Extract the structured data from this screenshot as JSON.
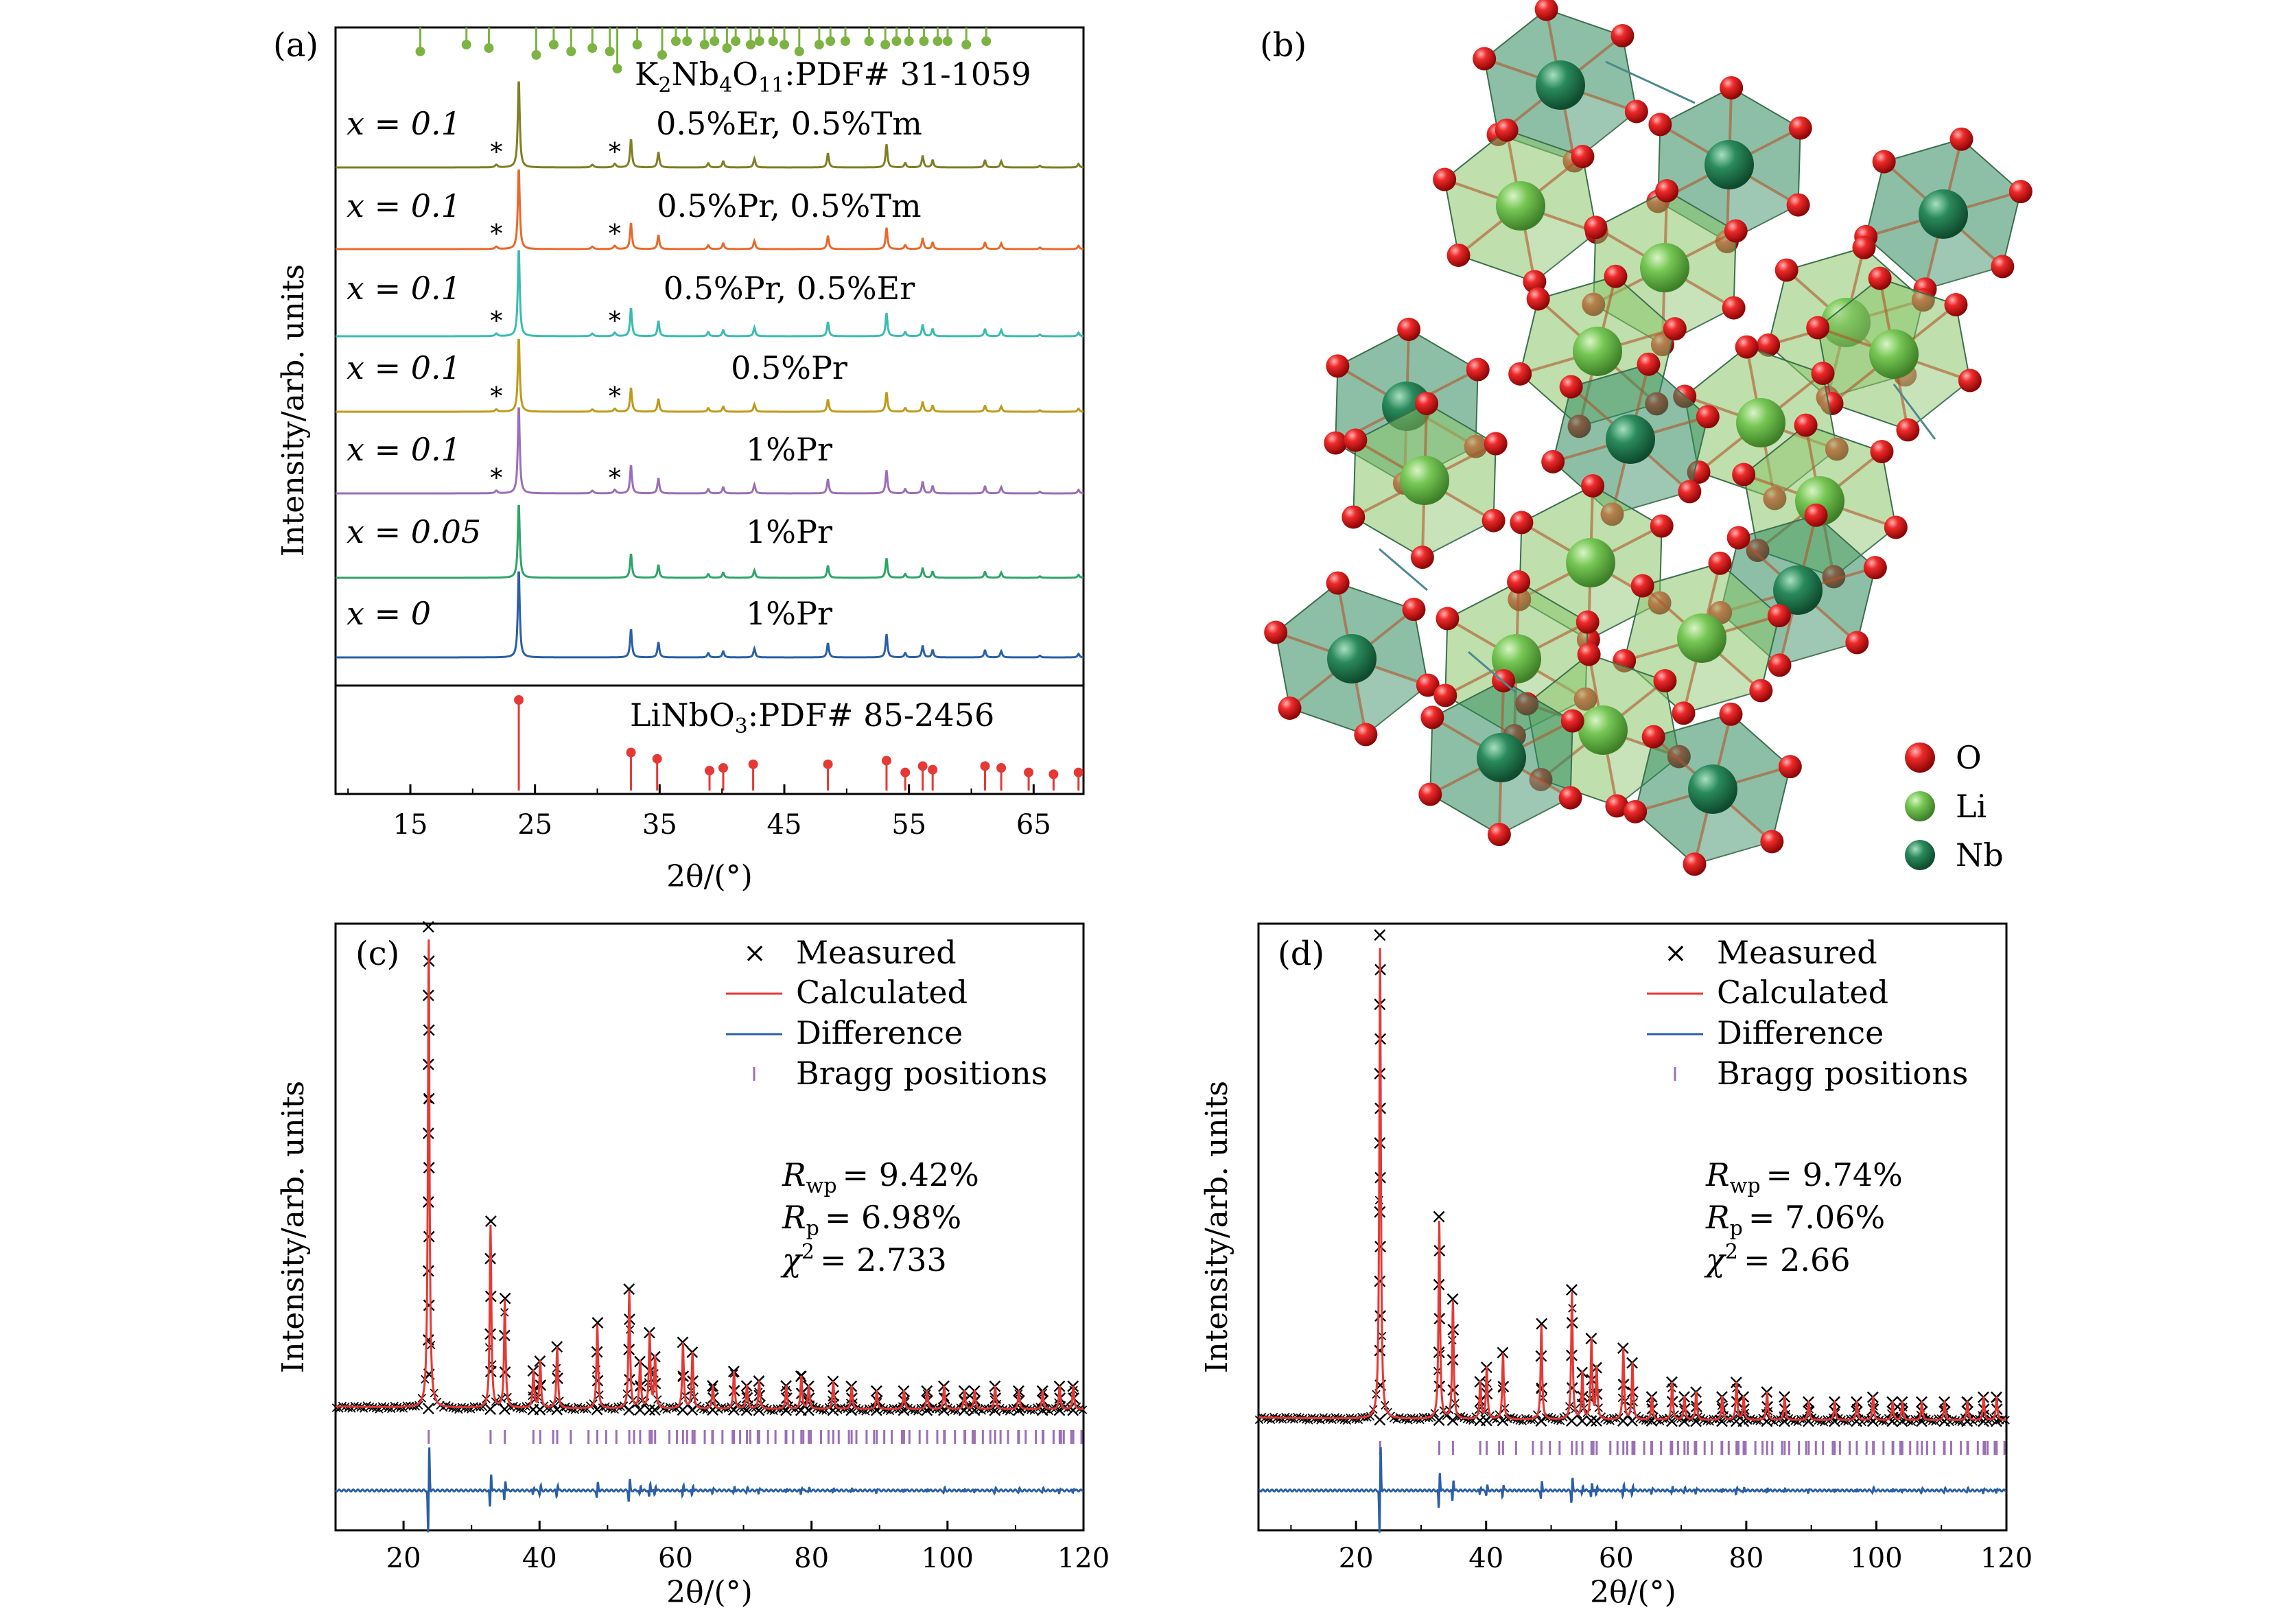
{
  "chart_data": [
    {
      "panel": "(a)",
      "type": "line",
      "xlabel": "2θ/(°)",
      "ylabel": "Intensity/arb. units",
      "xlim": [
        9,
        69
      ],
      "xticks": [
        "15",
        "25",
        "35",
        "45",
        "55",
        "65"
      ],
      "reference_top": {
        "label": "K2Nb4O11:PDF# 31-1059",
        "label_parts": [
          "K",
          "2",
          "Nb",
          "4",
          "O",
          "11",
          ":PDF# 31-1059"
        ],
        "color": "#7cb342",
        "peaks": [
          [
            15.8,
            0.5
          ],
          [
            19.5,
            0.3
          ],
          [
            21.3,
            0.4
          ],
          [
            25.1,
            0.6
          ],
          [
            26.5,
            0.3
          ],
          [
            27.9,
            0.5
          ],
          [
            29.6,
            0.4
          ],
          [
            31.0,
            0.5
          ],
          [
            31.6,
            1.0
          ],
          [
            33.2,
            0.3
          ],
          [
            35.2,
            0.6
          ],
          [
            36.3,
            0.2
          ],
          [
            37.2,
            0.2
          ],
          [
            38.6,
            0.3
          ],
          [
            39.4,
            0.2
          ],
          [
            40.4,
            0.4
          ],
          [
            41.1,
            0.2
          ],
          [
            42.3,
            0.3
          ],
          [
            43.0,
            0.2
          ],
          [
            44.1,
            0.2
          ],
          [
            45.0,
            0.3
          ],
          [
            46.2,
            0.5
          ],
          [
            47.8,
            0.3
          ],
          [
            48.7,
            0.2
          ],
          [
            49.9,
            0.2
          ],
          [
            51.8,
            0.2
          ],
          [
            53.1,
            0.3
          ],
          [
            54.0,
            0.2
          ],
          [
            55.0,
            0.2
          ],
          [
            56.2,
            0.2
          ],
          [
            57.3,
            0.2
          ],
          [
            58.1,
            0.2
          ],
          [
            59.6,
            0.3
          ],
          [
            61.2,
            0.2
          ]
        ]
      },
      "series": [
        {
          "x_label": "x = 0.1",
          "doping": "0.5%Er, 0.5%Tm",
          "color": "#7f7f26",
          "impurity": true
        },
        {
          "x_label": "x = 0.1",
          "doping": "0.5%Pr, 0.5%Tm",
          "color": "#e8692a",
          "impurity": true
        },
        {
          "x_label": "x = 0.1",
          "doping": "0.5%Pr, 0.5%Er",
          "color": "#3bbcb0",
          "impurity": true
        },
        {
          "x_label": "x = 0.1",
          "doping": "0.5%Pr",
          "color": "#bf9a1b",
          "impurity": true
        },
        {
          "x_label": "x = 0.1",
          "doping": "1%Pr",
          "color": "#9b6fb6",
          "impurity": true
        },
        {
          "x_label": "x = 0.05",
          "doping": "1%Pr",
          "color": "#2ea36a",
          "impurity": false
        },
        {
          "x_label": "x = 0",
          "doping": "1%Pr",
          "color": "#2b5fa6",
          "impurity": false
        }
      ],
      "impurity_marker": "*",
      "impurity_positions": [
        21.9,
        31.4
      ],
      "main_peaks": [
        [
          23.7,
          1.0
        ],
        [
          32.7,
          0.32
        ],
        [
          34.9,
          0.17
        ],
        [
          38.9,
          0.05
        ],
        [
          40.1,
          0.07
        ],
        [
          42.6,
          0.1
        ],
        [
          48.5,
          0.16
        ],
        [
          53.2,
          0.26
        ],
        [
          54.7,
          0.05
        ],
        [
          56.1,
          0.13
        ],
        [
          56.9,
          0.08
        ],
        [
          61.1,
          0.08
        ],
        [
          62.4,
          0.07
        ],
        [
          65.5,
          0.02
        ],
        [
          68.6,
          0.04
        ]
      ],
      "reference_bottom": {
        "label": "LiNbO3:PDF# 85-2456",
        "label_parts": [
          "LiNbO",
          "3",
          ":PDF# 85-2456"
        ],
        "color": "#e53935",
        "peaks": [
          [
            23.7,
            1.0
          ],
          [
            32.7,
            0.42
          ],
          [
            34.8,
            0.35
          ],
          [
            39.0,
            0.22
          ],
          [
            40.1,
            0.25
          ],
          [
            42.5,
            0.29
          ],
          [
            48.5,
            0.29
          ],
          [
            53.2,
            0.33
          ],
          [
            54.7,
            0.2
          ],
          [
            56.1,
            0.27
          ],
          [
            56.9,
            0.23
          ],
          [
            61.1,
            0.27
          ],
          [
            62.4,
            0.25
          ],
          [
            64.6,
            0.2
          ],
          [
            66.6,
            0.18
          ],
          [
            68.6,
            0.2
          ]
        ]
      }
    },
    {
      "panel": "(b)",
      "type": "diagram",
      "legend": [
        {
          "label": "O",
          "color": "#e01e1e"
        },
        {
          "label": "Li",
          "color": "#6cc24a"
        },
        {
          "label": "Nb",
          "color": "#1f7a50"
        }
      ]
    },
    {
      "panel": "(c)",
      "type": "scatter",
      "xlabel": "2θ/(°)",
      "ylabel": "Intensity/arb. units",
      "xlim": [
        10,
        120
      ],
      "xticks": [
        "20",
        "40",
        "60",
        "80",
        "100",
        "120"
      ],
      "legend": [
        "Measured",
        "Calculated",
        "Difference",
        "Bragg positions"
      ],
      "stats": {
        "Rwp": "= 9.42%",
        "Rp": "= 6.98%",
        "chi2": "= 2.733"
      },
      "peaks": [
        [
          23.7,
          1.0
        ],
        [
          32.8,
          0.39
        ],
        [
          34.9,
          0.23
        ],
        [
          39.1,
          0.08
        ],
        [
          40.1,
          0.1
        ],
        [
          42.6,
          0.13
        ],
        [
          48.5,
          0.18
        ],
        [
          53.2,
          0.25
        ],
        [
          54.8,
          0.1
        ],
        [
          56.2,
          0.16
        ],
        [
          57.0,
          0.11
        ],
        [
          61.1,
          0.14
        ],
        [
          62.5,
          0.12
        ],
        [
          65.5,
          0.05
        ],
        [
          68.6,
          0.08
        ],
        [
          70.5,
          0.05
        ],
        [
          72.3,
          0.06
        ],
        [
          76.3,
          0.05
        ],
        [
          78.5,
          0.07
        ],
        [
          79.6,
          0.05
        ],
        [
          83.2,
          0.06
        ],
        [
          85.9,
          0.05
        ],
        [
          89.6,
          0.04
        ],
        [
          93.6,
          0.04
        ],
        [
          97.0,
          0.04
        ],
        [
          99.5,
          0.05
        ],
        [
          102.5,
          0.04
        ],
        [
          104.0,
          0.04
        ],
        [
          107.0,
          0.05
        ],
        [
          110.5,
          0.04
        ],
        [
          114.0,
          0.04
        ],
        [
          116.5,
          0.05
        ],
        [
          118.5,
          0.05
        ]
      ]
    },
    {
      "panel": "(d)",
      "type": "scatter",
      "xlabel": "2θ/(°)",
      "ylabel": "Intensity/arb. units",
      "xlim": [
        5,
        120
      ],
      "xticks": [
        "20",
        "40",
        "60",
        "80",
        "100",
        "120"
      ],
      "legend": [
        "Measured",
        "Calculated",
        "Difference",
        "Bragg positions"
      ],
      "stats": {
        "Rwp": "= 9.74%",
        "Rp": "= 7.06%",
        "chi2": "= 2.66"
      },
      "peaks": [
        [
          23.7,
          1.0
        ],
        [
          32.8,
          0.42
        ],
        [
          34.9,
          0.25
        ],
        [
          39.1,
          0.08
        ],
        [
          40.1,
          0.11
        ],
        [
          42.6,
          0.14
        ],
        [
          48.5,
          0.2
        ],
        [
          53.2,
          0.27
        ],
        [
          54.8,
          0.1
        ],
        [
          56.2,
          0.17
        ],
        [
          57.0,
          0.11
        ],
        [
          61.1,
          0.15
        ],
        [
          62.5,
          0.12
        ],
        [
          65.5,
          0.05
        ],
        [
          68.6,
          0.08
        ],
        [
          70.5,
          0.05
        ],
        [
          72.3,
          0.06
        ],
        [
          76.3,
          0.05
        ],
        [
          78.5,
          0.08
        ],
        [
          79.6,
          0.05
        ],
        [
          83.2,
          0.06
        ],
        [
          85.9,
          0.05
        ],
        [
          89.6,
          0.04
        ],
        [
          93.6,
          0.04
        ],
        [
          97.0,
          0.04
        ],
        [
          99.5,
          0.05
        ],
        [
          102.5,
          0.04
        ],
        [
          104.0,
          0.04
        ],
        [
          107.0,
          0.04
        ],
        [
          110.5,
          0.04
        ],
        [
          114.0,
          0.04
        ],
        [
          116.5,
          0.05
        ],
        [
          118.5,
          0.05
        ]
      ]
    }
  ]
}
